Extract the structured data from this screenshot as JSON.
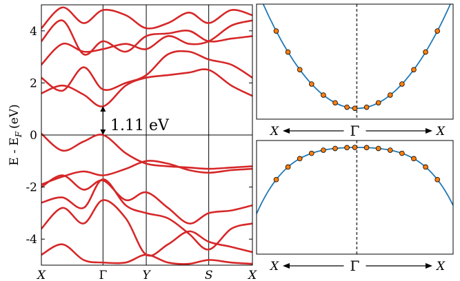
{
  "chart_data": [
    {
      "type": "line",
      "panel": "band-structure",
      "ylabel": "E - E",
      "ylabel_sub": "F",
      "ylabel_unit": "(eV)",
      "ylim": [
        -5,
        5
      ],
      "yticks": [
        "4",
        "2",
        "0",
        "-2",
        "-4"
      ],
      "ytick_values": [
        4,
        2,
        0,
        -2,
        -4
      ],
      "kpath": [
        "X",
        "Γ",
        "Y",
        "S",
        "X"
      ],
      "kpath_positions": [
        0,
        0.292,
        0.497,
        0.793,
        1.0
      ],
      "gap_label": "1.11 eV",
      "gap_eV": 1.11,
      "line_color": "#d62728",
      "series": [
        {
          "x": [
            0,
            0.1,
            0.2,
            0.292,
            0.4,
            0.497,
            0.6,
            0.7,
            0.793,
            0.9,
            1.0
          ],
          "y": [
            0.05,
            -0.6,
            -0.25,
            0.0,
            -0.7,
            -1.1,
            -1.2,
            -1.25,
            -1.3,
            -1.25,
            -1.2
          ]
        },
        {
          "x": [
            0,
            0.1,
            0.2,
            0.292,
            0.4,
            0.497,
            0.6,
            0.7,
            0.793,
            0.9,
            1.0
          ],
          "y": [
            -1.9,
            -1.6,
            -1.4,
            -1.55,
            -1.3,
            -1.0,
            -1.1,
            -1.35,
            -1.45,
            -1.35,
            -1.3
          ]
        },
        {
          "x": [
            0,
            0.1,
            0.2,
            0.292,
            0.4,
            0.497,
            0.6,
            0.7,
            0.793,
            0.9,
            1.0
          ],
          "y": [
            -2.0,
            -1.55,
            -2.1,
            -1.75,
            -2.5,
            -2.2,
            -2.8,
            -3.4,
            -3.0,
            -2.9,
            -2.7
          ]
        },
        {
          "x": [
            0,
            0.1,
            0.2,
            0.292,
            0.4,
            0.497,
            0.6,
            0.7,
            0.793,
            0.9,
            1.0
          ],
          "y": [
            -2.6,
            -2.4,
            -2.8,
            -1.7,
            -2.7,
            -3.0,
            -3.2,
            -3.8,
            -4.4,
            -3.6,
            -3.4
          ]
        },
        {
          "x": [
            0,
            0.1,
            0.2,
            0.292,
            0.4,
            0.497,
            0.6,
            0.7,
            0.793,
            0.9,
            1.0
          ],
          "y": [
            -3.6,
            -2.8,
            -3.4,
            -2.5,
            -3.2,
            -4.6,
            -4.2,
            -3.7,
            -4.1,
            -4.3,
            -4.5
          ]
        },
        {
          "x": [
            0,
            0.1,
            0.2,
            0.292,
            0.4,
            0.497,
            0.6,
            0.7,
            0.793,
            0.9,
            1.0
          ],
          "y": [
            -4.6,
            -4.2,
            -4.8,
            -4.9,
            -4.9,
            -4.6,
            -4.9,
            -4.95,
            -4.8,
            -4.9,
            -4.95
          ]
        },
        {
          "x": [
            0,
            0.1,
            0.2,
            0.292,
            0.4,
            0.497,
            0.6,
            0.7,
            0.793,
            0.9,
            1.0
          ],
          "y": [
            1.6,
            1.9,
            1.55,
            1.1,
            1.9,
            2.2,
            2.3,
            2.4,
            2.5,
            1.9,
            1.5
          ]
        },
        {
          "x": [
            0,
            0.1,
            0.2,
            0.292,
            0.4,
            0.497,
            0.6,
            0.7,
            0.793,
            0.9,
            1.0
          ],
          "y": [
            2.2,
            1.7,
            2.6,
            1.75,
            2.0,
            2.3,
            3.1,
            3.2,
            2.9,
            2.7,
            2.2
          ]
        },
        {
          "x": [
            0,
            0.1,
            0.2,
            0.292,
            0.4,
            0.497,
            0.6,
            0.7,
            0.793,
            0.9,
            1.0
          ],
          "y": [
            2.7,
            3.5,
            3.2,
            3.3,
            3.5,
            3.3,
            3.8,
            3.5,
            3.6,
            4.2,
            4.4
          ]
        },
        {
          "x": [
            0,
            0.1,
            0.2,
            0.292,
            0.4,
            0.497,
            0.6,
            0.7,
            0.793,
            0.9,
            1.0
          ],
          "y": [
            3.6,
            4.4,
            3.1,
            3.6,
            3.2,
            3.8,
            3.9,
            4.0,
            3.6,
            3.7,
            3.8
          ]
        },
        {
          "x": [
            0,
            0.1,
            0.2,
            0.292,
            0.4,
            0.497,
            0.6,
            0.7,
            0.793,
            0.9,
            1.0
          ],
          "y": [
            4.1,
            4.9,
            4.3,
            4.8,
            4.6,
            4.1,
            4.3,
            4.7,
            4.3,
            4.8,
            4.6
          ]
        }
      ]
    },
    {
      "type": "line",
      "panel": "conduction-band-fit",
      "kpath": [
        "X",
        "Γ",
        "X"
      ],
      "curve_color": "#1f77b4",
      "marker_color": "#ff7f0e",
      "points_x": [
        -0.4,
        -0.34,
        -0.28,
        -0.22,
        -0.16,
        -0.1,
        -0.04,
        0.0,
        0.06,
        0.12,
        0.18,
        0.24,
        0.3,
        0.36,
        0.42
      ],
      "fit_coeff": 6.4,
      "ylim": [
        -0.15,
        1.45
      ]
    },
    {
      "type": "line",
      "panel": "valence-band-fit",
      "kpath": [
        "X",
        "Γ",
        "X"
      ],
      "curve_color": "#1f77b4",
      "marker_color": "#ff7f0e",
      "points_x": [
        -0.4,
        -0.34,
        -0.28,
        -0.22,
        -0.16,
        -0.1,
        -0.04,
        0.0,
        0.06,
        0.12,
        0.18,
        0.24,
        0.3,
        0.36,
        0.42
      ],
      "fit_coeff": -1.3,
      "fit_quartic": -12.0,
      "ylim": [
        -1.85,
        0.12
      ]
    }
  ]
}
